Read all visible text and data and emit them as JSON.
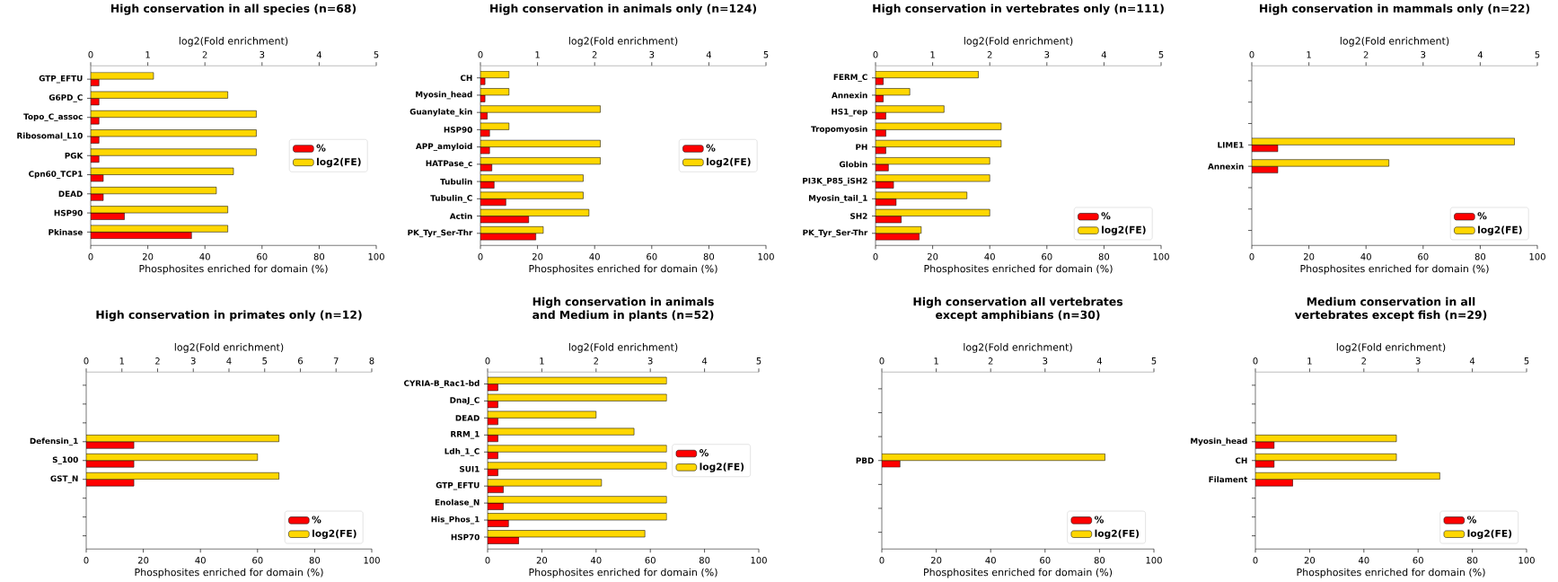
{
  "chart_data": [
    {
      "type": "bar",
      "orientation": "horizontal",
      "title": "High conservation in all species (n=68)",
      "xlabel": "Phosphosites enriched for domain (%)",
      "x2label": "log2(Fold enrichment)",
      "categories": [
        "GTP_EFTU",
        "G6PD_C",
        "Topo_C_assoc",
        "Ribosomal_L10",
        "PGK",
        "Cpn60_TCP1",
        "DEAD",
        "HSP90",
        "Pkinase"
      ],
      "series": [
        {
          "name": "%",
          "color": "#ff0000",
          "values": [
            2.9,
            2.9,
            2.9,
            2.9,
            2.9,
            4.4,
            4.4,
            11.8,
            35.3
          ]
        },
        {
          "name": "log2(FE)",
          "color": "#ffd700",
          "axis": "x2",
          "values": [
            1.1,
            2.4,
            2.9,
            2.9,
            2.9,
            2.5,
            2.2,
            2.4,
            2.4
          ]
        }
      ],
      "xlim": [
        0,
        100
      ],
      "xticks": [
        0,
        20,
        40,
        60,
        80,
        100
      ],
      "x2lim": [
        0,
        5
      ],
      "x2ticks": [
        0,
        1,
        2,
        3,
        4,
        5
      ],
      "legend": "right"
    },
    {
      "type": "bar",
      "orientation": "horizontal",
      "title": "High conservation in animals only (n=124)",
      "xlabel": "Phosphosites enriched for domain (%)",
      "x2label": "log2(Fold enrichment)",
      "categories": [
        "CH",
        "Myosin_head",
        "Guanylate_kin",
        "HSP90",
        "APP_amyloid",
        "HATPase_c",
        "Tubulin",
        "Tubulin_C",
        "Actin",
        "PK_Tyr_Ser-Thr"
      ],
      "series": [
        {
          "name": "%",
          "color": "#ff0000",
          "values": [
            1.6,
            1.6,
            2.4,
            3.2,
            3.2,
            4.0,
            4.8,
            8.9,
            16.9,
            19.4
          ]
        },
        {
          "name": "log2(FE)",
          "color": "#ffd700",
          "axis": "x2",
          "values": [
            0.5,
            0.5,
            2.1,
            0.5,
            2.1,
            2.1,
            1.8,
            1.8,
            1.9,
            1.1
          ]
        }
      ],
      "xlim": [
        0,
        100
      ],
      "xticks": [
        0,
        20,
        40,
        60,
        80,
        100
      ],
      "x2lim": [
        0,
        5
      ],
      "x2ticks": [
        0,
        1,
        2,
        3,
        4,
        5
      ],
      "legend": "right"
    },
    {
      "type": "bar",
      "orientation": "horizontal",
      "title": "High conservation in vertebrates only (n=111)",
      "xlabel": "Phosphosites enriched for domain (%)",
      "x2label": "log2(Fold enrichment)",
      "categories": [
        "FERM_C",
        "Annexin",
        "HS1_rep",
        "Tropomyosin",
        "PH",
        "Globin",
        "PI3K_P85_iSH2",
        "Myosin_tail_1",
        "SH2",
        "PK_Tyr_Ser-Thr"
      ],
      "series": [
        {
          "name": "%",
          "color": "#ff0000",
          "values": [
            2.7,
            2.7,
            3.6,
            3.6,
            3.6,
            4.5,
            6.3,
            7.2,
            9.0,
            15.3
          ]
        },
        {
          "name": "log2(FE)",
          "color": "#ffd700",
          "axis": "x2",
          "values": [
            1.8,
            0.6,
            1.2,
            2.2,
            2.2,
            2.0,
            2.0,
            1.6,
            2.0,
            0.8
          ]
        }
      ],
      "xlim": [
        0,
        100
      ],
      "xticks": [
        0,
        20,
        40,
        60,
        80,
        100
      ],
      "x2lim": [
        0,
        5
      ],
      "x2ticks": [
        0,
        1,
        2,
        3,
        4,
        5
      ],
      "legend": "bottom right"
    },
    {
      "type": "bar",
      "orientation": "horizontal",
      "title": "High conservation in mammals only (n=22)",
      "xlabel": "Phosphosites enriched for domain (%)",
      "x2label": "log2(Fold enrichment)",
      "categories": [
        null,
        null,
        null,
        "LIME1",
        "Annexin",
        null,
        null,
        null
      ],
      "series": [
        {
          "name": "%",
          "color": "#ff0000",
          "values": [
            null,
            null,
            null,
            9.1,
            9.1,
            null,
            null,
            null
          ]
        },
        {
          "name": "log2(FE)",
          "color": "#ffd700",
          "axis": "x2",
          "values": [
            null,
            null,
            null,
            4.6,
            2.4,
            null,
            null,
            null
          ]
        }
      ],
      "xlim": [
        0,
        100
      ],
      "xticks": [
        0,
        20,
        40,
        60,
        80,
        100
      ],
      "x2lim": [
        0,
        5
      ],
      "x2ticks": [
        0,
        1,
        2,
        3,
        4,
        5
      ],
      "legend": "bottom right"
    },
    {
      "type": "bar",
      "orientation": "horizontal",
      "title": "High conservation in primates only (n=12)",
      "xlabel": "Phosphosites enriched for domain (%)",
      "x2label": "log2(Fold enrichment)",
      "categories": [
        null,
        null,
        null,
        "Defensin_1",
        "S_100",
        "GST_N",
        null,
        null,
        null
      ],
      "series": [
        {
          "name": "%",
          "color": "#ff0000",
          "values": [
            null,
            null,
            null,
            16.7,
            16.7,
            16.7,
            null,
            null,
            null
          ]
        },
        {
          "name": "log2(FE)",
          "color": "#ffd700",
          "axis": "x2",
          "values": [
            null,
            null,
            null,
            5.4,
            4.8,
            5.4,
            null,
            null,
            null
          ]
        }
      ],
      "xlim": [
        0,
        100
      ],
      "xticks": [
        0,
        20,
        40,
        60,
        80,
        100
      ],
      "x2lim": [
        0,
        8
      ],
      "x2ticks": [
        0,
        1,
        2,
        3,
        4,
        5,
        6,
        7,
        8
      ],
      "legend": "bottom right"
    },
    {
      "type": "bar",
      "orientation": "horizontal",
      "title": "High conservation in animals and Medium in plants (n=52)",
      "xlabel": "Phosphosites enriched for domain (%)",
      "x2label": "log2(Fold enrichment)",
      "categories": [
        "CYRIA-B_Rac1-bd",
        "DnaJ_C",
        "DEAD",
        "RRM_1",
        "Ldh_1_C",
        "SUI1",
        "GTP_EFTU",
        "Enolase_N",
        "His_Phos_1",
        "HSP70"
      ],
      "series": [
        {
          "name": "%",
          "color": "#ff0000",
          "values": [
            3.8,
            3.8,
            3.8,
            3.8,
            3.8,
            3.8,
            5.8,
            5.8,
            7.7,
            11.5
          ]
        },
        {
          "name": "log2(FE)",
          "color": "#ffd700",
          "axis": "x2",
          "values": [
            3.3,
            3.3,
            2.0,
            2.7,
            3.3,
            3.3,
            2.1,
            3.3,
            3.3,
            2.9
          ]
        }
      ],
      "xlim": [
        0,
        100
      ],
      "xticks": [
        0,
        20,
        40,
        60,
        80,
        100
      ],
      "x2lim": [
        0,
        5
      ],
      "x2ticks": [
        0,
        1,
        2,
        3,
        4,
        5
      ],
      "legend": "right"
    },
    {
      "type": "bar",
      "orientation": "horizontal",
      "title": "High conservation all vertebrates except amphibians (n=30)",
      "xlabel": "Phosphosites enriched for domain (%)",
      "x2label": "log2(Fold enrichment)",
      "categories": [
        null,
        null,
        null,
        "PBD",
        null,
        null,
        null
      ],
      "series": [
        {
          "name": "%",
          "color": "#ff0000",
          "values": [
            null,
            null,
            null,
            6.7,
            null,
            null,
            null
          ]
        },
        {
          "name": "log2(FE)",
          "color": "#ffd700",
          "axis": "x2",
          "values": [
            null,
            null,
            null,
            4.1,
            null,
            null,
            null
          ]
        }
      ],
      "xlim": [
        0,
        100
      ],
      "xticks": [
        0,
        20,
        40,
        60,
        80,
        100
      ],
      "x2lim": [
        0,
        5
      ],
      "x2ticks": [
        0,
        1,
        2,
        3,
        4,
        5
      ],
      "legend": "bottom right"
    },
    {
      "type": "bar",
      "orientation": "horizontal",
      "title": "Medium conservation in all vertebrates except fish (n=29)",
      "xlabel": "Phosphosites enriched for domain (%)",
      "x2label": "log2(Fold enrichment)",
      "categories": [
        null,
        null,
        null,
        "Myosin_head",
        "CH",
        "Filament",
        null,
        null,
        null
      ],
      "series": [
        {
          "name": "%",
          "color": "#ff0000",
          "values": [
            null,
            null,
            null,
            6.9,
            6.9,
            13.8,
            null,
            null,
            null
          ]
        },
        {
          "name": "log2(FE)",
          "color": "#ffd700",
          "axis": "x2",
          "values": [
            null,
            null,
            null,
            2.6,
            2.6,
            3.4,
            null,
            null,
            null
          ]
        }
      ],
      "xlim": [
        0,
        100
      ],
      "xticks": [
        0,
        20,
        40,
        60,
        80,
        100
      ],
      "x2lim": [
        0,
        5
      ],
      "x2ticks": [
        0,
        1,
        2,
        3,
        4,
        5
      ],
      "legend": "bottom right"
    }
  ]
}
